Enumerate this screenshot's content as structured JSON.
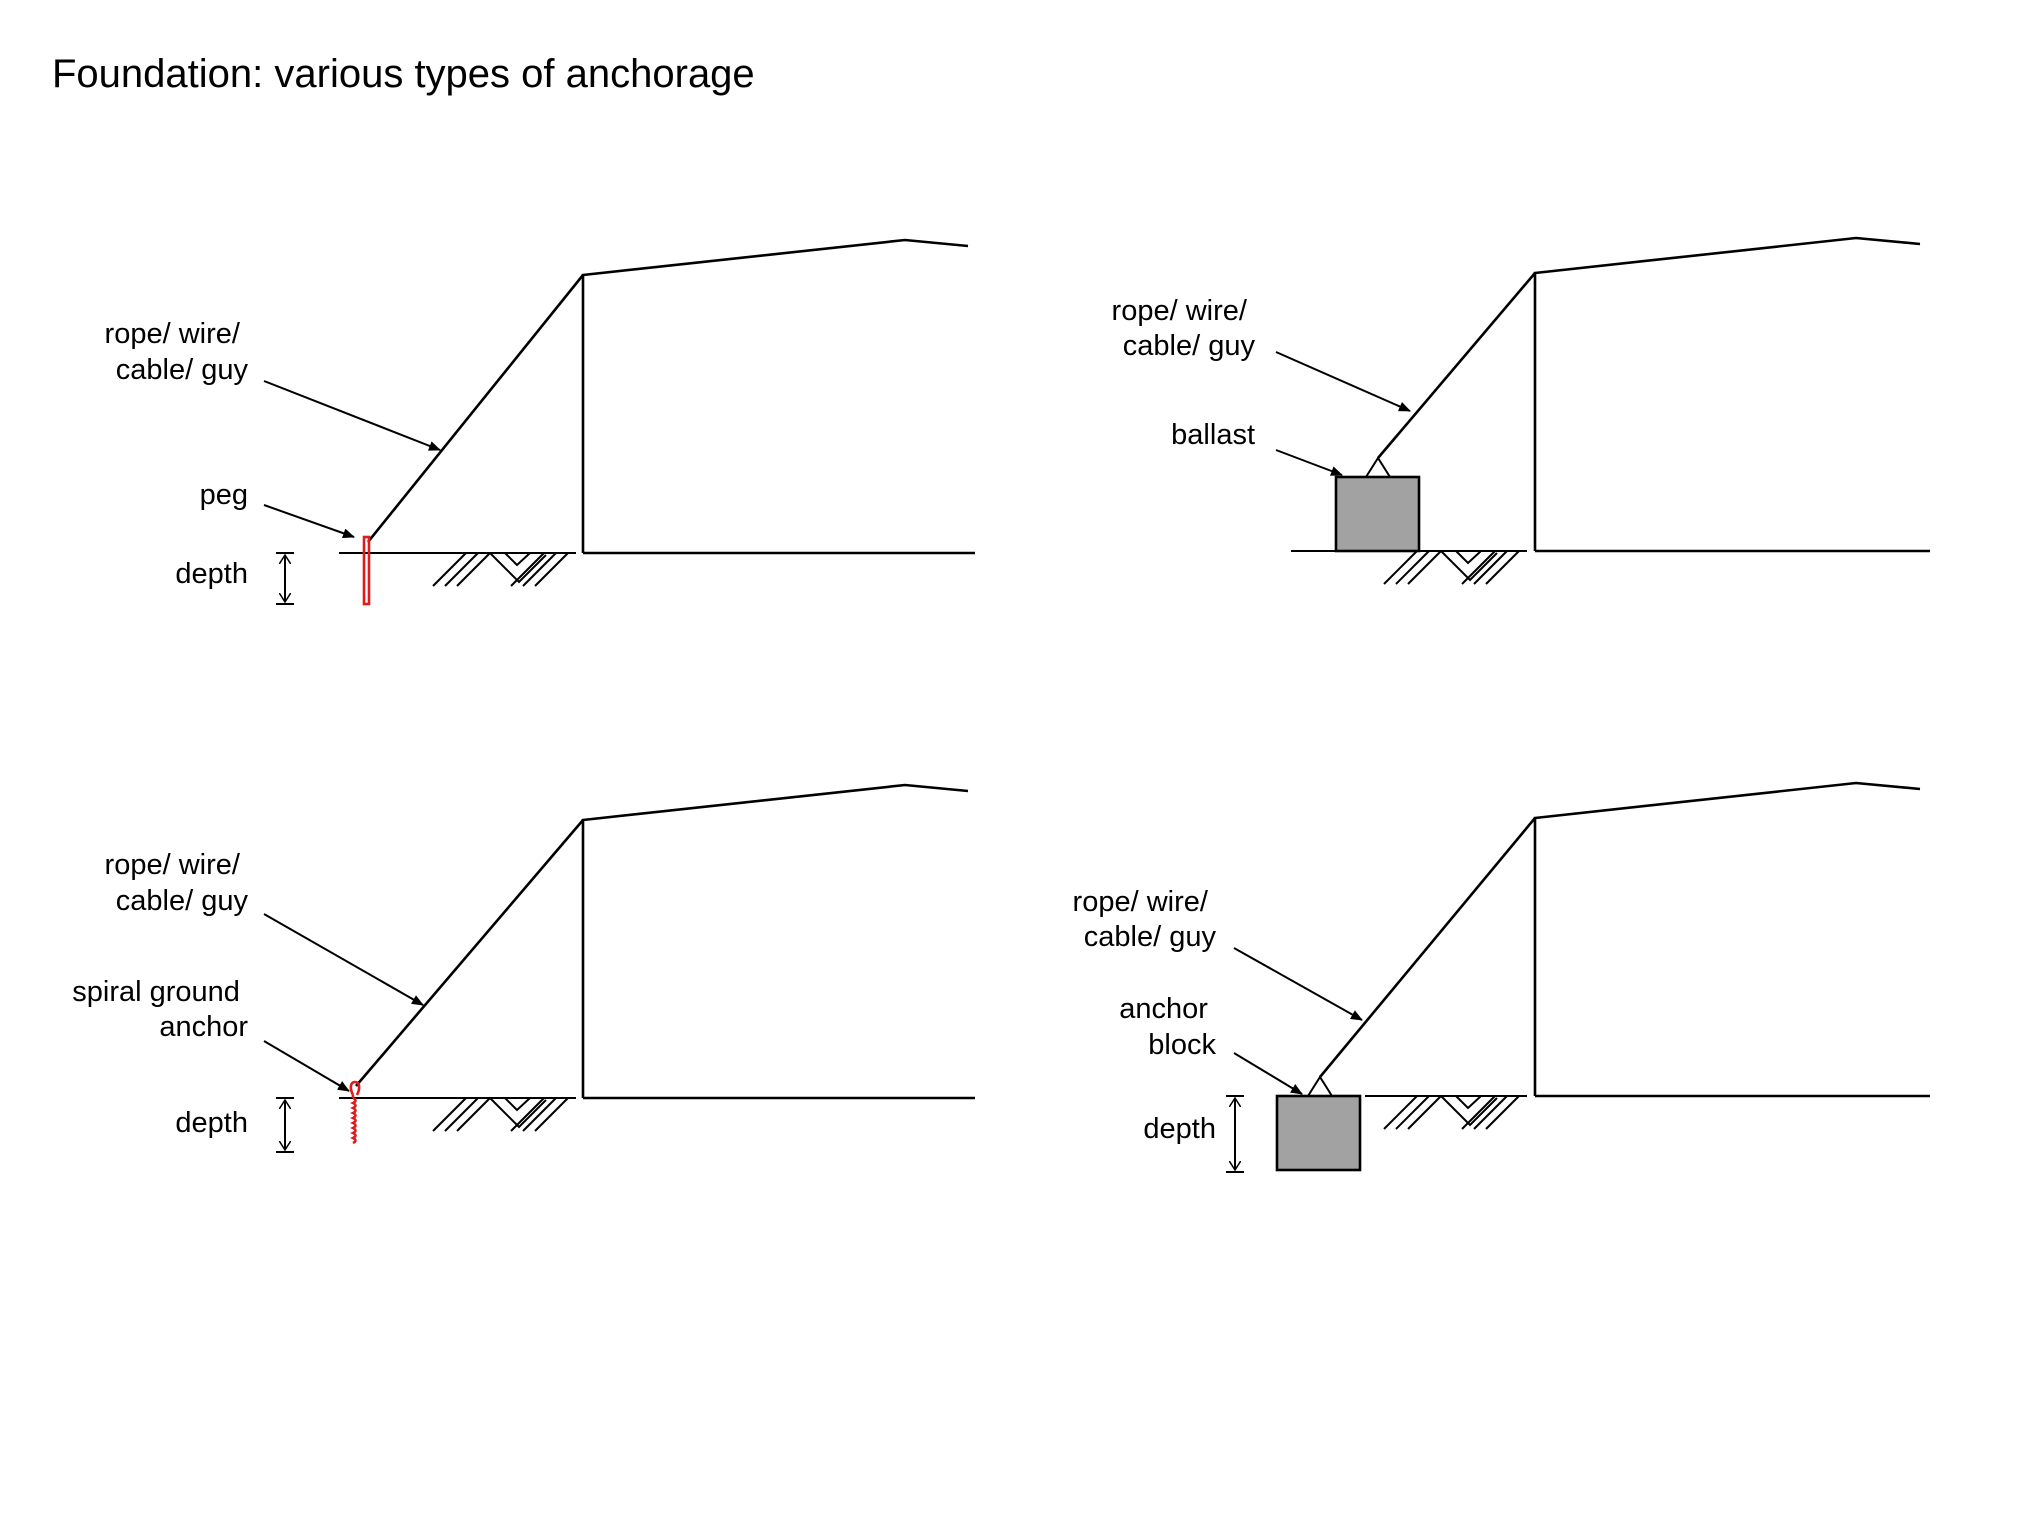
{
  "title": "Foundation: various types of anchorage",
  "panels": {
    "peg": {
      "guy_label": [
        "rope/ wire/",
        "cable/ guy"
      ],
      "anchor_label": [
        "peg"
      ],
      "depth_label": "depth"
    },
    "ballast": {
      "guy_label": [
        "rope/ wire/",
        "cable/ guy"
      ],
      "anchor_label": [
        "ballast"
      ]
    },
    "spiral": {
      "guy_label": [
        "rope/ wire/",
        "cable/ guy"
      ],
      "anchor_label": [
        "spiral ground",
        "anchor"
      ],
      "depth_label": "depth"
    },
    "block": {
      "guy_label": [
        "rope/ wire/",
        "cable/ guy"
      ],
      "anchor_label": [
        "anchor",
        "block"
      ],
      "depth_label": "depth"
    }
  },
  "colors": {
    "anchor_red": "#e11b1b",
    "block_gray": "#a2a2a2",
    "line": "#000000"
  }
}
